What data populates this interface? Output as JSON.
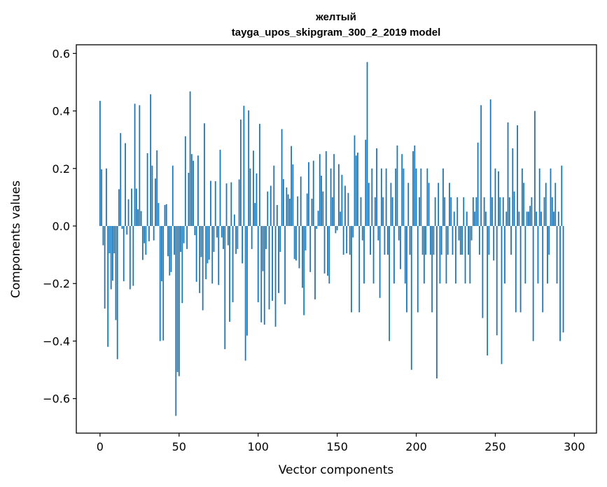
{
  "chart_data": {
    "type": "bar",
    "title": "желтый",
    "subtitle": "tayga_upos_skipgram_300_2_2019 model",
    "xlabel": "Vector components",
    "ylabel": "Components values",
    "xlim": [
      -15,
      314
    ],
    "ylim": [
      -0.72,
      0.63
    ],
    "xticks": [
      0,
      50,
      100,
      150,
      200,
      250,
      300
    ],
    "yticks": [
      -0.6,
      -0.4,
      -0.2,
      0.0,
      0.2,
      0.4,
      0.6
    ],
    "ytick_labels": [
      "−0.6",
      "−0.4",
      "−0.2",
      "0.0",
      "0.2",
      "0.4",
      "0.6"
    ],
    "xtick_labels": [
      "0",
      "50",
      "100",
      "150",
      "200",
      "250",
      "300"
    ],
    "grid": false,
    "color": "#1f77b4",
    "values": [
      0.435,
      0.197,
      -0.067,
      -0.287,
      0.2,
      -0.42,
      -0.095,
      -0.22,
      -0.19,
      -0.095,
      -0.327,
      -0.463,
      0.128,
      0.323,
      -0.01,
      -0.192,
      0.288,
      -0.03,
      0.093,
      -0.22,
      0.13,
      -0.208,
      0.425,
      0.13,
      0.058,
      0.42,
      0.052,
      -0.118,
      -0.06,
      -0.1,
      0.253,
      -0.053,
      0.458,
      0.21,
      -0.05,
      0.165,
      0.263,
      0.08,
      -0.4,
      -0.192,
      -0.398,
      0.073,
      0.076,
      -0.105,
      -0.172,
      -0.16,
      0.21,
      -0.1,
      -0.66,
      -0.508,
      -0.522,
      -0.09,
      -0.268,
      -0.06,
      0.312,
      -0.08,
      0.185,
      0.468,
      0.25,
      0.227,
      -0.032,
      -0.194,
      0.245,
      -0.233,
      -0.108,
      -0.293,
      0.357,
      -0.185,
      -0.13,
      -0.117,
      0.157,
      -0.2,
      -0.09,
      0.156,
      -0.04,
      -0.205,
      0.265,
      -0.04,
      -0.08,
      -0.428,
      0.148,
      -0.067,
      -0.333,
      0.152,
      -0.265,
      0.04,
      -0.097,
      -0.08,
      0.162,
      0.37,
      -0.13,
      0.418,
      -0.468,
      -0.381,
      0.402,
      0.2,
      -0.08,
      0.262,
      0.08,
      0.183,
      -0.265,
      0.355,
      -0.335,
      -0.157,
      -0.343,
      -0.08,
      0.12,
      -0.29,
      0.14,
      -0.26,
      0.21,
      -0.35,
      0.073,
      -0.233,
      -0.09,
      0.337,
      0.163,
      -0.272,
      0.134,
      0.11,
      0.095,
      0.278,
      0.214,
      -0.115,
      -0.12,
      0.103,
      -0.147,
      0.172,
      -0.215,
      -0.31,
      -0.085,
      0.113,
      0.222,
      -0.16,
      0.095,
      0.227,
      -0.255,
      -0.01,
      0.053,
      0.25,
      0.175,
      0.12,
      -0.165,
      0.26,
      -0.173,
      -0.2,
      0.2,
      0.1,
      0.25,
      -0.025,
      -0.015,
      0.215,
      0.05,
      0.178,
      -0.1,
      0.14,
      -0.095,
      0.115,
      -0.1,
      -0.3,
      -0.04,
      0.315,
      0.245,
      0.255,
      -0.3,
      0.1,
      -0.05,
      -0.2,
      0.3,
      0.57,
      0.15,
      -0.1,
      0.2,
      -0.2,
      0.1,
      0.27,
      -0.05,
      -0.25,
      0.2,
      0.1,
      -0.1,
      0.2,
      -0.1,
      -0.4,
      0.15,
      0.1,
      -0.2,
      0.2,
      0.28,
      -0.05,
      -0.15,
      0.25,
      0.2,
      -0.2,
      -0.3,
      0.15,
      -0.1,
      -0.5,
      0.26,
      0.28,
      0.2,
      -0.3,
      0.1,
      0.2,
      -0.1,
      -0.2,
      -0.1,
      0.2,
      0.15,
      -0.1,
      -0.3,
      -0.1,
      0.1,
      -0.53,
      0.15,
      -0.2,
      -0.1,
      0.2,
      0.1,
      -0.2,
      -0.1,
      0.15,
      0.1,
      -0.1,
      0.05,
      -0.2,
      0.1,
      -0.05,
      -0.1,
      -0.1,
      0.1,
      -0.2,
      0.05,
      -0.1,
      -0.2,
      -0.05,
      0.1,
      0.05,
      0.1,
      0.29,
      -0.1,
      0.42,
      -0.32,
      0.1,
      0.05,
      -0.45,
      -0.1,
      0.44,
      0.1,
      -0.12,
      0.2,
      -0.38,
      0.19,
      0.1,
      -0.48,
      0.1,
      -0.2,
      0.05,
      0.36,
      0.1,
      -0.1,
      0.27,
      0.12,
      -0.3,
      0.35,
      0.05,
      -0.3,
      0.2,
      0.15,
      -0.2,
      0.05,
      0.05,
      0.07,
      0.1,
      -0.4,
      0.4,
      0.05,
      -0.2,
      0.2,
      0.05,
      -0.3,
      0.1,
      0.15,
      -0.2,
      -0.1,
      0.2,
      0.1,
      0.05,
      0.15,
      -0.2,
      0.05,
      -0.4,
      0.21,
      -0.37
    ]
  }
}
